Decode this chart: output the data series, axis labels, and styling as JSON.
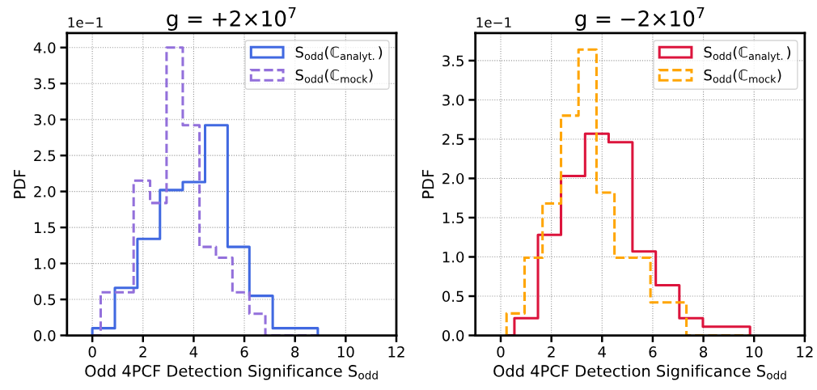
{
  "chart_data": [
    {
      "type": "histogram",
      "title": "g = +2×10$^{7}$",
      "xlabel": "Odd 4PCF Detection Significance S$_{odd}$",
      "ylabel": "PDF",
      "annotations": [
        "1e−1"
      ],
      "bins": [
        0,
        0.33,
        0.89,
        0.98,
        1.63,
        1.78,
        2.28,
        2.67,
        2.93,
        3.57,
        4.23,
        4.45,
        4.88,
        5.34,
        5.53,
        6.2,
        6.83,
        7.12,
        8.01,
        8.9
      ],
      "series": [
        {
          "name": "S$_{odd}$(ℂ$_{analyt.}$)",
          "color": "#4169e1",
          "line_style": "solid",
          "values": [
            0.1,
            0.1,
            0.66,
            0.66,
            0.66,
            1.34,
            1.34,
            2.02,
            2.02,
            2.13,
            2.13,
            2.92,
            2.92,
            1.23,
            1.23,
            0.55,
            0.55,
            0.1,
            0.1
          ]
        },
        {
          "name": "S$_{odd}$(ℂ$_{mock}$)",
          "color": "#9370db",
          "line_style": "dashed",
          "values": [
            0,
            0.6,
            0.6,
            0.6,
            2.15,
            2.15,
            1.84,
            1.84,
            4.0,
            2.92,
            1.23,
            1.23,
            1.08,
            1.08,
            0.6,
            0.3,
            0,
            0,
            0
          ]
        }
      ],
      "xlim": [
        -1,
        12
      ],
      "xticks": [
        0,
        2,
        4,
        6,
        8,
        10,
        12
      ],
      "ylim": [
        0,
        4.2
      ],
      "yticks": [
        {
          "value": 0,
          "label": "0.0"
        },
        {
          "value": 0.5,
          "label": "0.5"
        },
        {
          "value": 1,
          "label": "1.0"
        },
        {
          "value": 1.5,
          "label": "1.5"
        },
        {
          "value": 2,
          "label": "2.0"
        },
        {
          "value": 2.5,
          "label": "2.5"
        },
        {
          "value": 3,
          "label": "3.0"
        },
        {
          "value": 3.5,
          "label": "3.5"
        },
        {
          "value": 4,
          "label": "4.0"
        }
      ],
      "grid": true,
      "legend": "top right"
    },
    {
      "type": "histogram",
      "title": "g = −2×10$^{7}$",
      "xlabel": "Odd 4PCF Detection Significance S$_{odd}$",
      "ylabel": "PDF",
      "annotations": [
        "1e−1"
      ],
      "bins": [
        0.23,
        0.54,
        0.94,
        1.47,
        1.65,
        2.38,
        3.07,
        3.33,
        3.78,
        4.26,
        4.49,
        5.2,
        5.91,
        6.12,
        6.62,
        7.05,
        7.33,
        7.98,
        8.91,
        9.84
      ],
      "series": [
        {
          "name": "S$_{odd}$(ℂ$_{analyt.}$)",
          "color": "#dc143c",
          "line_style": "solid",
          "values": [
            0,
            0.22,
            0.22,
            1.28,
            1.28,
            2.03,
            2.03,
            2.57,
            2.57,
            2.46,
            2.46,
            1.07,
            1.07,
            0.64,
            0.64,
            0.22,
            0.22,
            0.11,
            0.11
          ]
        },
        {
          "name": "S$_{odd}$(ℂ$_{mock}$)",
          "color": "#ffa500",
          "line_style": "dashed",
          "values": [
            0.28,
            0.28,
            0.99,
            0.99,
            1.68,
            2.8,
            3.64,
            3.64,
            1.82,
            1.82,
            0.99,
            0.99,
            0.42,
            0.42,
            0.42,
            0.42,
            0,
            0,
            0
          ]
        }
      ],
      "xlim": [
        -1,
        12
      ],
      "xticks": [
        0,
        2,
        4,
        6,
        8,
        10,
        12
      ],
      "ylim": [
        0,
        3.85
      ],
      "yticks": [
        {
          "value": 0,
          "label": "0.0"
        },
        {
          "value": 0.5,
          "label": "0.5"
        },
        {
          "value": 1,
          "label": "1.0"
        },
        {
          "value": 1.5,
          "label": "1.5"
        },
        {
          "value": 2,
          "label": "2.0"
        },
        {
          "value": 2.5,
          "label": "2.5"
        },
        {
          "value": 3,
          "label": "3.0"
        },
        {
          "value": 3.5,
          "label": "3.5"
        }
      ],
      "grid": true,
      "legend": "top right"
    }
  ]
}
